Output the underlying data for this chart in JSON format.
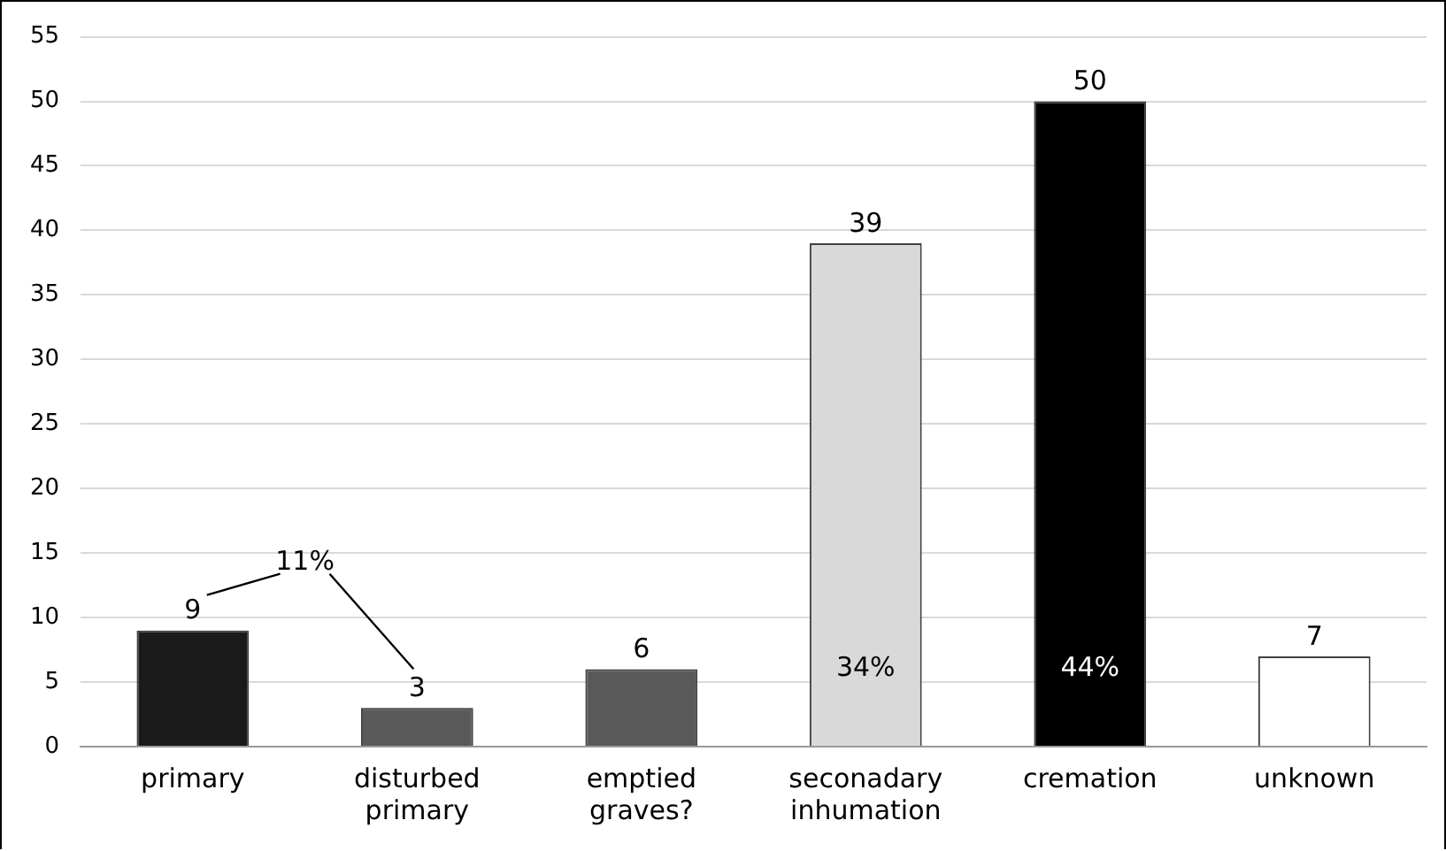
{
  "chart_data": {
    "type": "bar",
    "categories": [
      "primary",
      "disturbed primary",
      "emptied graves?",
      "seconadary inhumation",
      "cremation",
      "unknown"
    ],
    "values": [
      9,
      3,
      6,
      39,
      50,
      7
    ],
    "colors": [
      "#1a1a1a",
      "#595959",
      "#595959",
      "#d9d9d9",
      "#000000",
      "#ffffff"
    ],
    "ylim": [
      0,
      55
    ],
    "yticks": [
      0,
      5,
      10,
      15,
      20,
      25,
      30,
      35,
      40,
      45,
      50,
      55
    ],
    "grid": "y",
    "data_labels": true,
    "annotations": [
      "11%",
      "34%",
      "44%"
    ]
  }
}
